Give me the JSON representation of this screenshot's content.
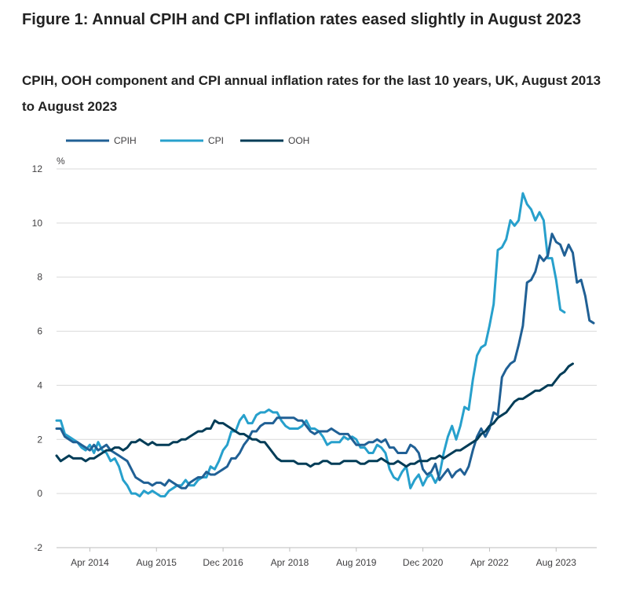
{
  "title": "Figure 1: Annual CPIH and CPI inflation rates eased slightly in August 2023",
  "subtitle": "CPIH, OOH component and CPI annual inflation rates for the last 10 years, UK, August 2013 to August 2023",
  "colors": {
    "CPIH": "#206095",
    "CPI": "#27a0cc",
    "OOH": "#003c57",
    "grid": "#d9d9d9",
    "axis": "#bebebe"
  },
  "chart_data": {
    "type": "line",
    "title": "Figure 1: Annual CPIH and CPI inflation rates eased slightly in August 2023",
    "subtitle": "CPIH, OOH component and CPI annual inflation rates for the last 10 years, UK, August 2013 to August 2023",
    "ylabel": "%",
    "xlabel": "",
    "ylim": [
      -2,
      12
    ],
    "yticks": [
      -2,
      0,
      2,
      4,
      6,
      8,
      10,
      12
    ],
    "x_start": "Aug 2013",
    "x_end": "Aug 2023",
    "x_tick_labels": [
      "Apr 2014",
      "Aug 2015",
      "Dec 2016",
      "Apr 2018",
      "Aug 2019",
      "Dec 2020",
      "Apr 2022",
      "Aug 2023"
    ],
    "grid": true,
    "legend": "top-left",
    "series": [
      {
        "name": "CPIH",
        "values": [
          2.4,
          2.4,
          2.1,
          2.0,
          1.9,
          1.9,
          1.8,
          1.7,
          1.6,
          1.8,
          1.6,
          1.7,
          1.8,
          1.6,
          1.5,
          1.4,
          1.3,
          1.2,
          0.9,
          0.6,
          0.5,
          0.4,
          0.4,
          0.3,
          0.4,
          0.4,
          0.3,
          0.5,
          0.4,
          0.3,
          0.2,
          0.2,
          0.4,
          0.5,
          0.6,
          0.6,
          0.8,
          0.7,
          0.7,
          0.8,
          0.9,
          1.0,
          1.3,
          1.3,
          1.5,
          1.8,
          2.0,
          2.3,
          2.3,
          2.5,
          2.6,
          2.6,
          2.6,
          2.8,
          2.8,
          2.8,
          2.8,
          2.8,
          2.7,
          2.7,
          2.5,
          2.3,
          2.2,
          2.3,
          2.3,
          2.3,
          2.4,
          2.3,
          2.2,
          2.2,
          2.2,
          2.0,
          1.8,
          1.8,
          1.8,
          1.9,
          1.9,
          2.0,
          1.9,
          2.0,
          1.7,
          1.7,
          1.5,
          1.5,
          1.5,
          1.8,
          1.7,
          1.5,
          0.9,
          0.7,
          0.8,
          1.1,
          0.5,
          0.7,
          0.9,
          0.6,
          0.8,
          0.9,
          0.7,
          1.0,
          1.6,
          2.1,
          2.4,
          2.1,
          2.4,
          3.0,
          2.9,
          4.3,
          4.6,
          4.8,
          4.9,
          5.5,
          6.2,
          7.8,
          7.9,
          8.2,
          8.8,
          8.6,
          8.8,
          9.6,
          9.3,
          9.2,
          8.8,
          9.2,
          8.9,
          7.8,
          7.9,
          7.3,
          6.4,
          6.3
        ],
        "values_note": "Monthly, Aug 2013 to Aug 2023"
      },
      {
        "name": "CPI",
        "values": [
          2.7,
          2.7,
          2.2,
          2.1,
          2.0,
          1.9,
          1.7,
          1.6,
          1.8,
          1.5,
          1.9,
          1.6,
          1.5,
          1.2,
          1.3,
          1.0,
          0.5,
          0.3,
          0.0,
          0.0,
          -0.1,
          0.1,
          0.0,
          0.1,
          0.0,
          -0.1,
          -0.1,
          0.1,
          0.2,
          0.3,
          0.3,
          0.5,
          0.3,
          0.3,
          0.5,
          0.6,
          0.6,
          1.0,
          0.9,
          1.2,
          1.6,
          1.8,
          2.3,
          2.3,
          2.7,
          2.9,
          2.6,
          2.6,
          2.9,
          3.0,
          3.0,
          3.1,
          3.0,
          3.0,
          2.7,
          2.5,
          2.4,
          2.4,
          2.4,
          2.5,
          2.7,
          2.4,
          2.4,
          2.3,
          2.1,
          1.8,
          1.9,
          1.9,
          1.9,
          2.1,
          2.0,
          2.1,
          2.0,
          1.7,
          1.7,
          1.5,
          1.5,
          1.8,
          1.7,
          1.5,
          0.9,
          0.6,
          0.5,
          0.8,
          1.0,
          0.2,
          0.5,
          0.7,
          0.3,
          0.6,
          0.7,
          0.4,
          0.7,
          1.5,
          2.1,
          2.5,
          2.0,
          2.5,
          3.2,
          3.1,
          4.2,
          5.1,
          5.4,
          5.5,
          6.2,
          7.0,
          9.0,
          9.1,
          9.4,
          10.1,
          9.9,
          10.1,
          11.1,
          10.7,
          10.5,
          10.1,
          10.4,
          10.1,
          8.7,
          8.7,
          7.9,
          6.8,
          6.7
        ],
        "values_note": "Monthly, Aug 2013 to Aug 2023"
      },
      {
        "name": "OOH",
        "values": [
          1.4,
          1.2,
          1.3,
          1.4,
          1.3,
          1.3,
          1.3,
          1.2,
          1.3,
          1.3,
          1.4,
          1.5,
          1.6,
          1.6,
          1.7,
          1.7,
          1.6,
          1.7,
          1.9,
          1.9,
          2.0,
          1.9,
          1.8,
          1.9,
          1.8,
          1.8,
          1.8,
          1.8,
          1.9,
          1.9,
          2.0,
          2.0,
          2.1,
          2.2,
          2.3,
          2.3,
          2.4,
          2.4,
          2.7,
          2.6,
          2.6,
          2.5,
          2.4,
          2.3,
          2.2,
          2.2,
          2.1,
          2.0,
          2.0,
          1.9,
          1.9,
          1.7,
          1.5,
          1.3,
          1.2,
          1.2,
          1.2,
          1.2,
          1.1,
          1.1,
          1.1,
          1.0,
          1.1,
          1.1,
          1.2,
          1.2,
          1.1,
          1.1,
          1.1,
          1.2,
          1.2,
          1.2,
          1.2,
          1.1,
          1.1,
          1.2,
          1.2,
          1.2,
          1.3,
          1.2,
          1.1,
          1.1,
          1.2,
          1.1,
          1.0,
          1.1,
          1.1,
          1.2,
          1.2,
          1.2,
          1.3,
          1.3,
          1.4,
          1.3,
          1.4,
          1.5,
          1.6,
          1.6,
          1.7,
          1.8,
          1.9,
          2.0,
          2.2,
          2.3,
          2.5,
          2.6,
          2.8,
          2.9,
          3.0,
          3.2,
          3.4,
          3.5,
          3.5,
          3.6,
          3.7,
          3.8,
          3.8,
          3.9,
          4.0,
          4.0,
          4.2,
          4.4,
          4.5,
          4.7,
          4.8
        ],
        "values_note": "Monthly, Aug 2013 to Aug 2023"
      }
    ]
  }
}
